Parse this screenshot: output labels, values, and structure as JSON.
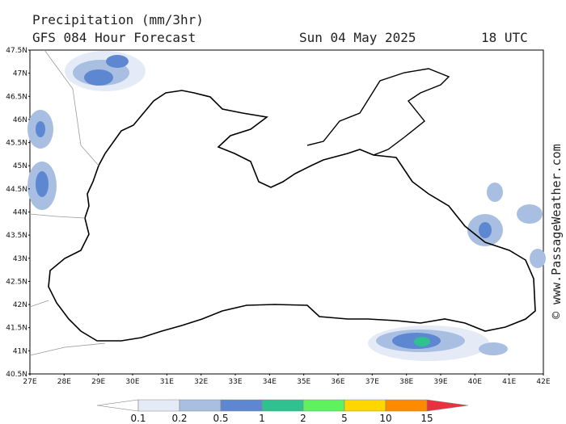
{
  "header": {
    "title": "Precipitation (mm/3hr)",
    "subtitle": "GFS 084 Hour Forecast",
    "date": "Sun 04 May 2025",
    "time": "18 UTC"
  },
  "watermark": "© www.PassageWeather.com",
  "lat_labels": [
    "47.5N",
    "47N",
    "46.5N",
    "46N",
    "45.5N",
    "45N",
    "44.5N",
    "44N",
    "43.5N",
    "43N",
    "42.5N",
    "42N",
    "41.5N",
    "41N",
    "40.5N"
  ],
  "lon_labels": [
    "27E",
    "28E",
    "29E",
    "30E",
    "31E",
    "32E",
    "33E",
    "34E",
    "35E",
    "36E",
    "37E",
    "38E",
    "39E",
    "40E",
    "41E",
    "42E"
  ],
  "colorbar": {
    "labels": [
      "0.1",
      "0.2",
      "0.5",
      "1",
      "2",
      "5",
      "10",
      "15"
    ],
    "colors": [
      "#ffffff",
      "#e4ebf6",
      "#a9bfe2",
      "#5d87d1",
      "#2fc18f",
      "#5ef25e",
      "#ffd700",
      "#ff8a00",
      "#e8303f"
    ]
  }
}
